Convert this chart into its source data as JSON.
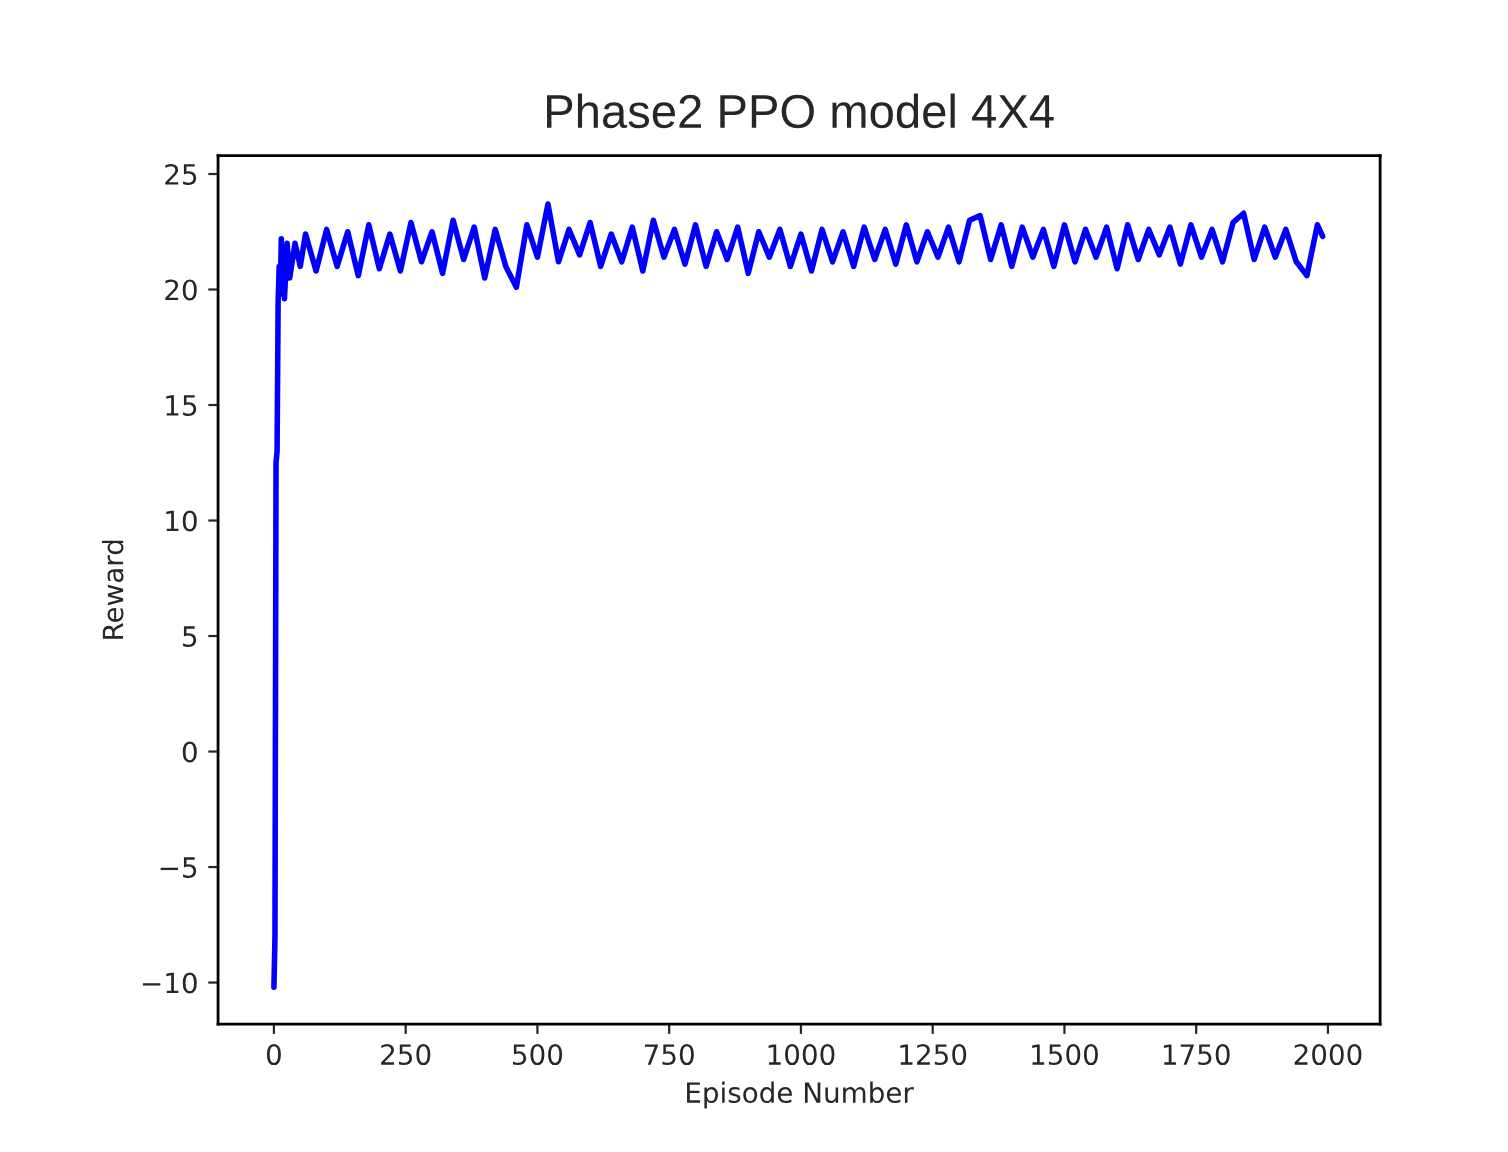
{
  "chart_data": {
    "type": "line",
    "title": "Phase2 PPO model 4X4",
    "xlabel": "Episode Number",
    "ylabel": "Reward",
    "series": [
      {
        "color": "#0000ff",
        "x": [
          0,
          2,
          4,
          6,
          8,
          10,
          12,
          14,
          16,
          18,
          20,
          25,
          30,
          40,
          50,
          60,
          80,
          100,
          120,
          140,
          160,
          180,
          200,
          220,
          240,
          260,
          280,
          300,
          320,
          340,
          360,
          380,
          400,
          420,
          440,
          460,
          480,
          500,
          520,
          540,
          560,
          580,
          600,
          620,
          640,
          660,
          680,
          700,
          720,
          740,
          760,
          780,
          800,
          820,
          840,
          860,
          880,
          900,
          920,
          940,
          960,
          980,
          1000,
          1020,
          1040,
          1060,
          1080,
          1100,
          1120,
          1140,
          1160,
          1180,
          1200,
          1220,
          1240,
          1260,
          1280,
          1300,
          1320,
          1340,
          1360,
          1380,
          1400,
          1420,
          1440,
          1460,
          1480,
          1500,
          1520,
          1540,
          1560,
          1580,
          1600,
          1620,
          1640,
          1660,
          1680,
          1700,
          1720,
          1740,
          1760,
          1780,
          1800,
          1820,
          1840,
          1860,
          1880,
          1900,
          1920,
          1940,
          1960,
          1980,
          1990
        ],
        "values": [
          -10.2,
          -8,
          12.5,
          13,
          19.5,
          21,
          19.8,
          22.2,
          20,
          21.5,
          19.6,
          22,
          20.5,
          22,
          21,
          22.4,
          20.8,
          22.6,
          21,
          22.5,
          20.6,
          22.8,
          20.9,
          22.4,
          20.8,
          22.9,
          21.2,
          22.5,
          20.7,
          23,
          21.3,
          22.7,
          20.5,
          22.6,
          21,
          20.1,
          22.8,
          21.4,
          23.7,
          21.2,
          22.6,
          21.5,
          22.9,
          21,
          22.4,
          21.2,
          22.7,
          20.8,
          23,
          21.4,
          22.6,
          21.1,
          22.8,
          21,
          22.5,
          21.3,
          22.7,
          20.7,
          22.5,
          21.4,
          22.6,
          21,
          22.4,
          20.8,
          22.6,
          21.2,
          22.5,
          21,
          22.7,
          21.3,
          22.6,
          21.1,
          22.8,
          21.2,
          22.5,
          21.4,
          22.7,
          21.2,
          23,
          23.2,
          21.3,
          22.8,
          21,
          22.7,
          21.4,
          22.6,
          21,
          22.8,
          21.2,
          22.6,
          21.4,
          22.7,
          20.9,
          22.8,
          21.3,
          22.6,
          21.5,
          22.7,
          21.1,
          22.8,
          21.4,
          22.6,
          21.2,
          22.9,
          23.3,
          21.3,
          22.7,
          21.4,
          22.6,
          21.2,
          20.6,
          22.8,
          22.3
        ]
      }
    ],
    "xlim": [
      -106,
      2099
    ],
    "ylim": [
      -11.8,
      25.8
    ],
    "xticks": [
      0,
      250,
      500,
      750,
      1000,
      1250,
      1500,
      1750,
      2000
    ],
    "yticks": [
      {
        "value": -10,
        "label": "−10"
      },
      {
        "value": -5,
        "label": "−5"
      },
      0,
      5,
      10,
      15,
      20,
      25
    ],
    "grid": false,
    "legend": false,
    "marker": "none",
    "line_style": "solid"
  }
}
